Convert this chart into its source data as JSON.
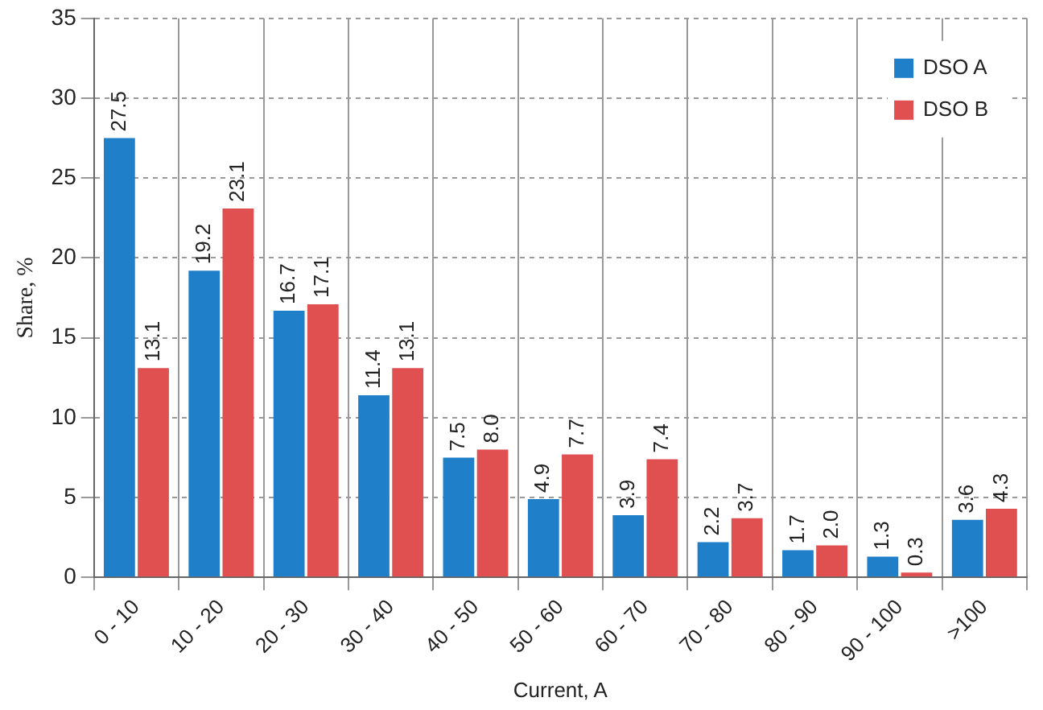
{
  "chart_data": {
    "type": "bar",
    "xlabel": "Current, A",
    "ylabel": "Share, %",
    "categories": [
      "0 - 10",
      "10 - 20",
      "20 - 30",
      "30 - 40",
      "40 - 50",
      "50 - 60",
      "60 - 70",
      "70 - 80",
      "80 - 90",
      "90 - 100",
      ">100"
    ],
    "series": [
      {
        "name": "DSO A",
        "color": "#1f7fc8",
        "values": [
          27.5,
          19.2,
          16.7,
          11.4,
          7.5,
          4.9,
          3.9,
          2.2,
          1.7,
          1.3,
          3.6
        ],
        "value_labels": [
          "27.5",
          "19.2",
          "16.7",
          "11.4",
          "7.5",
          "4.9",
          "3.9",
          "2.2",
          "1.7",
          "1.3",
          "3.6"
        ]
      },
      {
        "name": "DSO B",
        "color": "#e05050",
        "values": [
          13.1,
          23.1,
          17.1,
          13.1,
          8.0,
          7.7,
          7.4,
          3.7,
          2.0,
          0.3,
          4.3
        ],
        "value_labels": [
          "13.1",
          "23.1",
          "17.1",
          "13.1",
          "8.0",
          "7.7",
          "7.4",
          "3.7",
          "2.0",
          "0.3",
          "4.3"
        ]
      }
    ],
    "ylim": [
      0,
      35
    ],
    "yticks": [
      0,
      5,
      10,
      15,
      20,
      25,
      30,
      35
    ],
    "grid": true,
    "legend": "top right"
  }
}
